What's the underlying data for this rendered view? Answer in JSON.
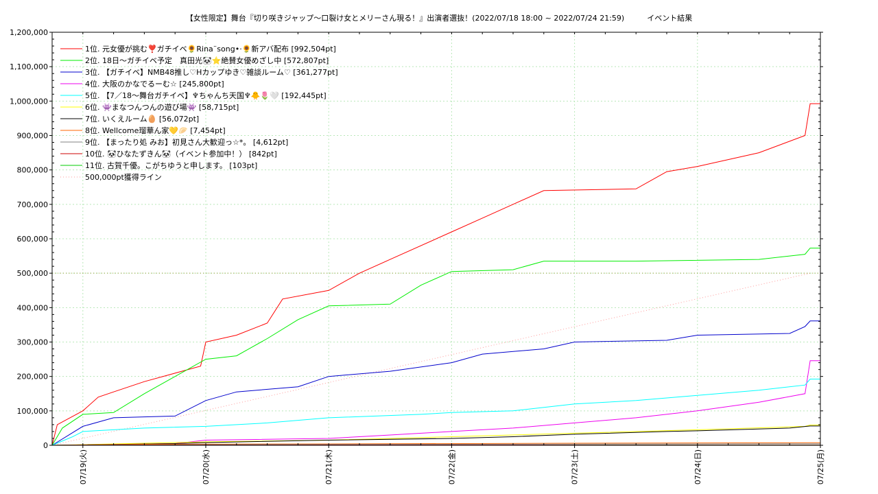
{
  "chart_data": {
    "type": "line",
    "title": "【女性限定】舞台『切り咲きジャップ〜口裂け女とメリーさん現る！』出演者選抜！(2022/07/18 18:00 ~ 2022/07/24 21:59)　　　イベント結果",
    "xlabel": "",
    "ylabel": "",
    "x_range": [
      "2022-07-18 18:00",
      "2022-07-25 00:00"
    ],
    "ylim": [
      0,
      1200000
    ],
    "y_ticks": [
      "0",
      "100,000",
      "200,000",
      "300,000",
      "400,000",
      "500,000",
      "600,000",
      "700,000",
      "800,000",
      "900,000",
      "1,000,000",
      "1,100,000",
      "1,200,000"
    ],
    "x_ticks": [
      {
        "label": "07/19(火)",
        "x": "2022-07-19 00:00"
      },
      {
        "label": "07/20(水)",
        "x": "2022-07-20 00:00"
      },
      {
        "label": "07/21(木)",
        "x": "2022-07-21 00:00"
      },
      {
        "label": "07/22(金)",
        "x": "2022-07-22 00:00"
      },
      {
        "label": "07/23(土)",
        "x": "2022-07-23 00:00"
      },
      {
        "label": "07/24(日)",
        "x": "2022-07-24 00:00"
      },
      {
        "label": "07/25(月)",
        "x": "2022-07-25 00:00"
      }
    ],
    "grid": true,
    "legend_position": "top-left",
    "series": [
      {
        "name": "1位. 元女優が挑む❣️ガチイベ🌻Rina¨song•·🌻新アバ配布 [992,504pt]",
        "color": "#ff0000",
        "points": [
          [
            "2022-07-18 18:00",
            0
          ],
          [
            "2022-07-18 19:00",
            60000
          ],
          [
            "2022-07-19 00:00",
            100000
          ],
          [
            "2022-07-19 03:00",
            140000
          ],
          [
            "2022-07-19 06:00",
            155000
          ],
          [
            "2022-07-19 12:00",
            185000
          ],
          [
            "2022-07-19 23:00",
            230000
          ],
          [
            "2022-07-20 00:00",
            300000
          ],
          [
            "2022-07-20 06:00",
            320000
          ],
          [
            "2022-07-20 12:00",
            355000
          ],
          [
            "2022-07-20 15:00",
            425000
          ],
          [
            "2022-07-21 00:00",
            450000
          ],
          [
            "2022-07-21 06:00",
            500000
          ],
          [
            "2022-07-21 12:00",
            540000
          ],
          [
            "2022-07-22 00:00",
            620000
          ],
          [
            "2022-07-22 06:00",
            660000
          ],
          [
            "2022-07-22 12:00",
            700000
          ],
          [
            "2022-07-22 18:00",
            740000
          ],
          [
            "2022-07-23 12:00",
            745000
          ],
          [
            "2022-07-23 18:00",
            795000
          ],
          [
            "2022-07-24 00:00",
            810000
          ],
          [
            "2022-07-24 12:00",
            850000
          ],
          [
            "2022-07-24 21:00",
            900000
          ],
          [
            "2022-07-24 22:00",
            992504
          ],
          [
            "2022-07-25 00:00",
            992504
          ]
        ]
      },
      {
        "name": "2位. 18日〜ガチイベ予定　真田光🐼⭐絶賛女優めざし中 [572,807pt]",
        "color": "#00ee00",
        "points": [
          [
            "2022-07-18 18:00",
            0
          ],
          [
            "2022-07-18 20:00",
            50000
          ],
          [
            "2022-07-19 00:00",
            90000
          ],
          [
            "2022-07-19 06:00",
            95000
          ],
          [
            "2022-07-19 12:00",
            150000
          ],
          [
            "2022-07-19 18:00",
            200000
          ],
          [
            "2022-07-20 00:00",
            250000
          ],
          [
            "2022-07-20 06:00",
            260000
          ],
          [
            "2022-07-20 12:00",
            310000
          ],
          [
            "2022-07-20 18:00",
            365000
          ],
          [
            "2022-07-21 00:00",
            405000
          ],
          [
            "2022-07-21 12:00",
            410000
          ],
          [
            "2022-07-21 18:00",
            465000
          ],
          [
            "2022-07-22 00:00",
            505000
          ],
          [
            "2022-07-22 12:00",
            510000
          ],
          [
            "2022-07-22 18:00",
            535000
          ],
          [
            "2022-07-23 12:00",
            535000
          ],
          [
            "2022-07-24 12:00",
            540000
          ],
          [
            "2022-07-24 21:00",
            555000
          ],
          [
            "2022-07-24 22:00",
            572807
          ],
          [
            "2022-07-25 00:00",
            572807
          ]
        ]
      },
      {
        "name": "3位. 【ガチイベ】NMB48推し♡Hカップゆき♡雑談ルーム♡ [361,277pt]",
        "color": "#0000cc",
        "points": [
          [
            "2022-07-18 18:00",
            0
          ],
          [
            "2022-07-19 00:00",
            55000
          ],
          [
            "2022-07-19 06:00",
            80000
          ],
          [
            "2022-07-19 18:00",
            85000
          ],
          [
            "2022-07-20 00:00",
            130000
          ],
          [
            "2022-07-20 06:00",
            155000
          ],
          [
            "2022-07-20 18:00",
            170000
          ],
          [
            "2022-07-21 00:00",
            200000
          ],
          [
            "2022-07-21 12:00",
            215000
          ],
          [
            "2022-07-22 00:00",
            240000
          ],
          [
            "2022-07-22 06:00",
            265000
          ],
          [
            "2022-07-22 18:00",
            280000
          ],
          [
            "2022-07-23 00:00",
            300000
          ],
          [
            "2022-07-23 18:00",
            305000
          ],
          [
            "2022-07-24 00:00",
            320000
          ],
          [
            "2022-07-24 18:00",
            325000
          ],
          [
            "2022-07-24 21:00",
            345000
          ],
          [
            "2022-07-24 22:00",
            361277
          ],
          [
            "2022-07-25 00:00",
            361277
          ]
        ]
      },
      {
        "name": "4位. 大阪のかなでるーむ☆ [245,800pt]",
        "color": "#ee00ee",
        "points": [
          [
            "2022-07-18 18:00",
            0
          ],
          [
            "2022-07-19 18:00",
            5000
          ],
          [
            "2022-07-20 00:00",
            15000
          ],
          [
            "2022-07-21 00:00",
            20000
          ],
          [
            "2022-07-21 12:00",
            30000
          ],
          [
            "2022-07-22 00:00",
            40000
          ],
          [
            "2022-07-22 12:00",
            50000
          ],
          [
            "2022-07-23 00:00",
            65000
          ],
          [
            "2022-07-23 12:00",
            80000
          ],
          [
            "2022-07-24 00:00",
            100000
          ],
          [
            "2022-07-24 12:00",
            125000
          ],
          [
            "2022-07-24 21:00",
            150000
          ],
          [
            "2022-07-24 22:00",
            245800
          ],
          [
            "2022-07-25 00:00",
            245800
          ]
        ]
      },
      {
        "name": "5位. 【7／18〜舞台ガチイベ】♆ちゃんち天国♆🐥🌷🤍 [192,445pt]",
        "color": "#00ffff",
        "points": [
          [
            "2022-07-18 18:00",
            0
          ],
          [
            "2022-07-18 22:00",
            25000
          ],
          [
            "2022-07-19 00:00",
            40000
          ],
          [
            "2022-07-19 12:00",
            50000
          ],
          [
            "2022-07-20 00:00",
            55000
          ],
          [
            "2022-07-20 12:00",
            65000
          ],
          [
            "2022-07-21 00:00",
            80000
          ],
          [
            "2022-07-21 18:00",
            90000
          ],
          [
            "2022-07-22 00:00",
            95000
          ],
          [
            "2022-07-22 12:00",
            100000
          ],
          [
            "2022-07-23 00:00",
            120000
          ],
          [
            "2022-07-23 12:00",
            130000
          ],
          [
            "2022-07-24 00:00",
            145000
          ],
          [
            "2022-07-24 12:00",
            160000
          ],
          [
            "2022-07-24 21:00",
            175000
          ],
          [
            "2022-07-24 22:00",
            192445
          ],
          [
            "2022-07-25 00:00",
            192445
          ]
        ]
      },
      {
        "name": "6位. 👾まなつんつんの遊び場👾 [58,715pt]",
        "color": "#ffff00",
        "points": [
          [
            "2022-07-18 18:00",
            0
          ],
          [
            "2022-07-20 00:00",
            10000
          ],
          [
            "2022-07-21 00:00",
            15000
          ],
          [
            "2022-07-22 00:00",
            25000
          ],
          [
            "2022-07-23 00:00",
            35000
          ],
          [
            "2022-07-24 00:00",
            45000
          ],
          [
            "2022-07-24 21:00",
            55000
          ],
          [
            "2022-07-24 22:00",
            58715
          ],
          [
            "2022-07-25 00:00",
            58715
          ]
        ]
      },
      {
        "name": "7位. いくえルーム🥚 [56,072pt]",
        "color": "#000000",
        "points": [
          [
            "2022-07-18 18:00",
            0
          ],
          [
            "2022-07-19 18:00",
            5000
          ],
          [
            "2022-07-20 00:00",
            8000
          ],
          [
            "2022-07-21 00:00",
            15000
          ],
          [
            "2022-07-22 00:00",
            20000
          ],
          [
            "2022-07-22 12:00",
            25000
          ],
          [
            "2022-07-23 00:00",
            32000
          ],
          [
            "2022-07-23 18:00",
            40000
          ],
          [
            "2022-07-24 00:00",
            42000
          ],
          [
            "2022-07-24 18:00",
            50000
          ],
          [
            "2022-07-24 22:00",
            56072
          ],
          [
            "2022-07-25 00:00",
            56072
          ]
        ]
      },
      {
        "name": "8位. Wellcome瑠華ん家💛🥟 [7,454pt]",
        "color": "#ff6600",
        "points": [
          [
            "2022-07-18 18:00",
            0
          ],
          [
            "2022-07-19 12:00",
            3000
          ],
          [
            "2022-07-21 00:00",
            4000
          ],
          [
            "2022-07-23 00:00",
            6000
          ],
          [
            "2022-07-24 22:00",
            7454
          ],
          [
            "2022-07-25 00:00",
            7454
          ]
        ]
      },
      {
        "name": "9位. 【まったり処 みお】初見さん大歓迎っ☆*。 [4,612pt]",
        "color": "#808080",
        "points": [
          [
            "2022-07-18 18:00",
            0
          ],
          [
            "2022-07-20 00:00",
            2000
          ],
          [
            "2022-07-22 00:00",
            3000
          ],
          [
            "2022-07-24 22:00",
            4612
          ],
          [
            "2022-07-25 00:00",
            4612
          ]
        ]
      },
      {
        "name": "10位. 🐼ひなたずきん🐼（イベント参加中！） [842pt]",
        "color": "#cc0000",
        "points": [
          [
            "2022-07-18 18:00",
            0
          ],
          [
            "2022-07-20 00:00",
            500
          ],
          [
            "2022-07-24 22:00",
            842
          ],
          [
            "2022-07-25 00:00",
            842
          ]
        ]
      },
      {
        "name": "11位. 古賀千優。こがちゆうと申します。 [103pt]",
        "color": "#00cc00",
        "points": [
          [
            "2022-07-18 18:00",
            0
          ],
          [
            "2022-07-24 22:00",
            103
          ],
          [
            "2022-07-25 00:00",
            103
          ]
        ]
      },
      {
        "name": "500,000pt獲得ライン",
        "color": "#ff9999",
        "dashed": true,
        "points": [
          [
            "2022-07-18 18:00",
            0
          ],
          [
            "2022-07-24 22:00",
            500000
          ]
        ]
      }
    ]
  }
}
